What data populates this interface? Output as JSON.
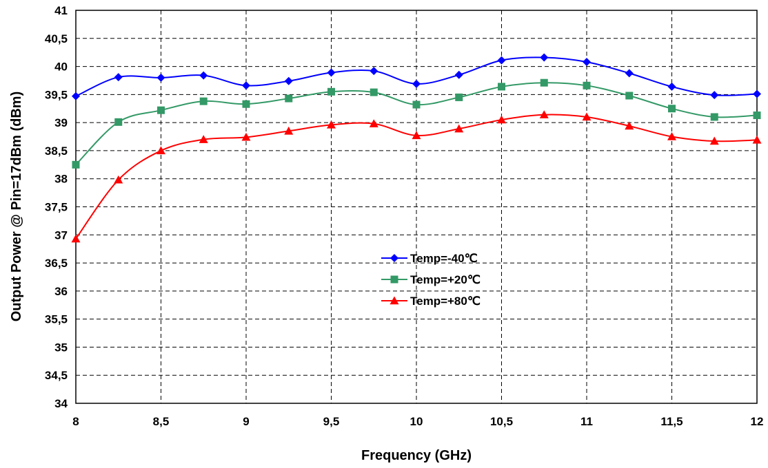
{
  "chart_data": {
    "type": "line",
    "xlabel": "Frequency (GHz)",
    "ylabel": "Output Power @ Pin=17dBm (dBm)",
    "xlim": [
      8,
      12
    ],
    "ylim": [
      34,
      41
    ],
    "x_ticks": [
      "8",
      "8,5",
      "9",
      "9,5",
      "10",
      "10,5",
      "11",
      "11,5",
      "12"
    ],
    "y_ticks": [
      "34",
      "34,5",
      "35",
      "35,5",
      "36",
      "36,5",
      "37",
      "37,5",
      "38",
      "38,5",
      "39",
      "39,5",
      "40",
      "40,5",
      "41"
    ],
    "grid": true,
    "legend_position": "center",
    "x": [
      8,
      8.25,
      8.5,
      8.75,
      9,
      9.25,
      9.5,
      9.75,
      10,
      10.25,
      10.5,
      10.75,
      11,
      11.25,
      11.5,
      11.75,
      12
    ],
    "series": [
      {
        "name": "Temp=-40℃",
        "color": "#0000ff",
        "marker": "diamond",
        "values": [
          39.47,
          39.81,
          39.8,
          39.84,
          39.66,
          39.74,
          39.89,
          39.92,
          39.69,
          39.85,
          40.11,
          40.16,
          40.08,
          39.88,
          39.64,
          39.49,
          39.51
        ]
      },
      {
        "name": "Temp=+20℃",
        "color": "#339966",
        "marker": "square",
        "values": [
          38.25,
          39.01,
          39.22,
          39.38,
          39.33,
          39.43,
          39.55,
          39.54,
          39.32,
          39.45,
          39.64,
          39.71,
          39.66,
          39.48,
          39.25,
          39.1,
          39.13
        ]
      },
      {
        "name": "Temp=+80℃",
        "color": "#ff0000",
        "marker": "triangle",
        "values": [
          36.93,
          37.98,
          38.5,
          38.7,
          38.74,
          38.85,
          38.96,
          38.98,
          38.77,
          38.89,
          39.05,
          39.14,
          39.1,
          38.94,
          38.75,
          38.67,
          38.69
        ]
      }
    ]
  }
}
